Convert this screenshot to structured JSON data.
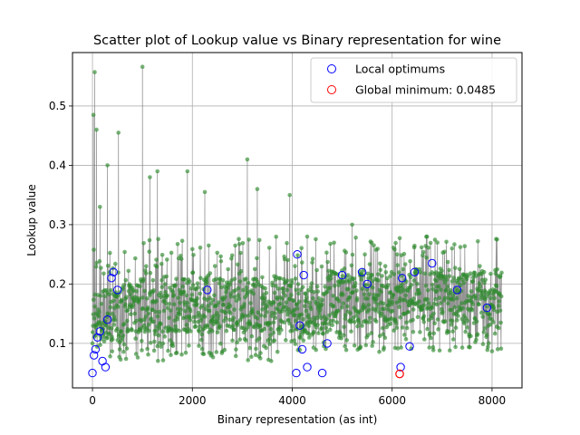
{
  "chart_data": {
    "type": "scatter",
    "title": "Scatter plot of Lookup value vs Binary representation for wine",
    "xlabel": "Binary representation (as int)",
    "ylabel": "Lookup value",
    "xlim": [
      -400,
      8600
    ],
    "ylim": [
      0.025,
      0.59
    ],
    "xticks": [
      0,
      2000,
      4000,
      6000,
      8000
    ],
    "yticks": [
      0.1,
      0.2,
      0.3,
      0.4,
      0.5
    ],
    "grid": true,
    "legend_position": "top-right",
    "x_domain": [
      0,
      8191
    ],
    "series": [
      {
        "kind": "all-points",
        "color": "#2e8b2e",
        "line_color": "#808080",
        "typical_range": [
          0.07,
          0.27
        ],
        "peaks": [
          {
            "x": 20,
            "y": 0.485
          },
          {
            "x": 45,
            "y": 0.557
          },
          {
            "x": 80,
            "y": 0.46
          },
          {
            "x": 150,
            "y": 0.33
          },
          {
            "x": 300,
            "y": 0.4
          },
          {
            "x": 520,
            "y": 0.455
          },
          {
            "x": 1000,
            "y": 0.566
          },
          {
            "x": 1150,
            "y": 0.38
          },
          {
            "x": 1300,
            "y": 0.39
          },
          {
            "x": 1900,
            "y": 0.39
          },
          {
            "x": 2250,
            "y": 0.355
          },
          {
            "x": 3100,
            "y": 0.41
          },
          {
            "x": 3300,
            "y": 0.36
          },
          {
            "x": 3950,
            "y": 0.35
          },
          {
            "x": 4300,
            "y": 0.28
          },
          {
            "x": 5200,
            "y": 0.3
          },
          {
            "x": 6100,
            "y": 0.25
          },
          {
            "x": 7200,
            "y": 0.26
          },
          {
            "x": 8100,
            "y": 0.275
          }
        ]
      },
      {
        "name": "Local optimums",
        "kind": "local-optimums",
        "color": "#0000ff",
        "values": [
          [
            0,
            0.05
          ],
          [
            30,
            0.08
          ],
          [
            60,
            0.09
          ],
          [
            100,
            0.11
          ],
          [
            150,
            0.12
          ],
          [
            200,
            0.07
          ],
          [
            260,
            0.06
          ],
          [
            300,
            0.14
          ],
          [
            380,
            0.21
          ],
          [
            420,
            0.22
          ],
          [
            500,
            0.19
          ],
          [
            2300,
            0.19
          ],
          [
            4080,
            0.05
          ],
          [
            4100,
            0.25
          ],
          [
            4150,
            0.13
          ],
          [
            4200,
            0.09
          ],
          [
            4230,
            0.215
          ],
          [
            4300,
            0.06
          ],
          [
            4600,
            0.05
          ],
          [
            4700,
            0.1
          ],
          [
            5000,
            0.215
          ],
          [
            5400,
            0.22
          ],
          [
            5500,
            0.2
          ],
          [
            6170,
            0.06
          ],
          [
            6200,
            0.21
          ],
          [
            6350,
            0.095
          ],
          [
            6450,
            0.22
          ],
          [
            6800,
            0.235
          ],
          [
            7300,
            0.19
          ],
          [
            7900,
            0.16
          ]
        ]
      },
      {
        "name": "Global minimum: 0.0485",
        "kind": "global-minimum",
        "color": "#ff0000",
        "values": [
          [
            6150,
            0.0485
          ]
        ]
      }
    ]
  }
}
